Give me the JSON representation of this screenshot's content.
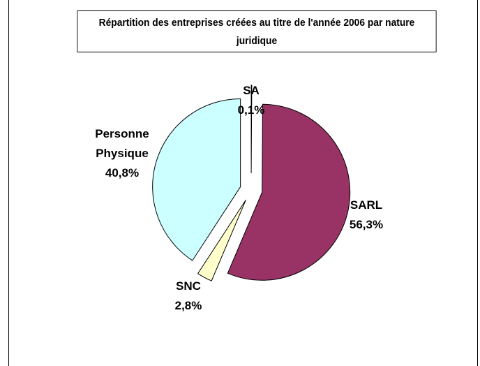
{
  "chart_data": {
    "type": "pie",
    "title": "Répartition des entreprises créées au titre de l'année 2006 par nature juridique",
    "categories": [
      "SA",
      "SARL",
      "SNC",
      "Personne Physique"
    ],
    "values": [
      0.1,
      56.3,
      2.8,
      40.8
    ],
    "value_labels": [
      "0,1%",
      "56,3%",
      "2,8%",
      "40,8%"
    ],
    "colors": [
      "#ffffff",
      "#993366",
      "#ffffcc",
      "#ccffff"
    ]
  }
}
